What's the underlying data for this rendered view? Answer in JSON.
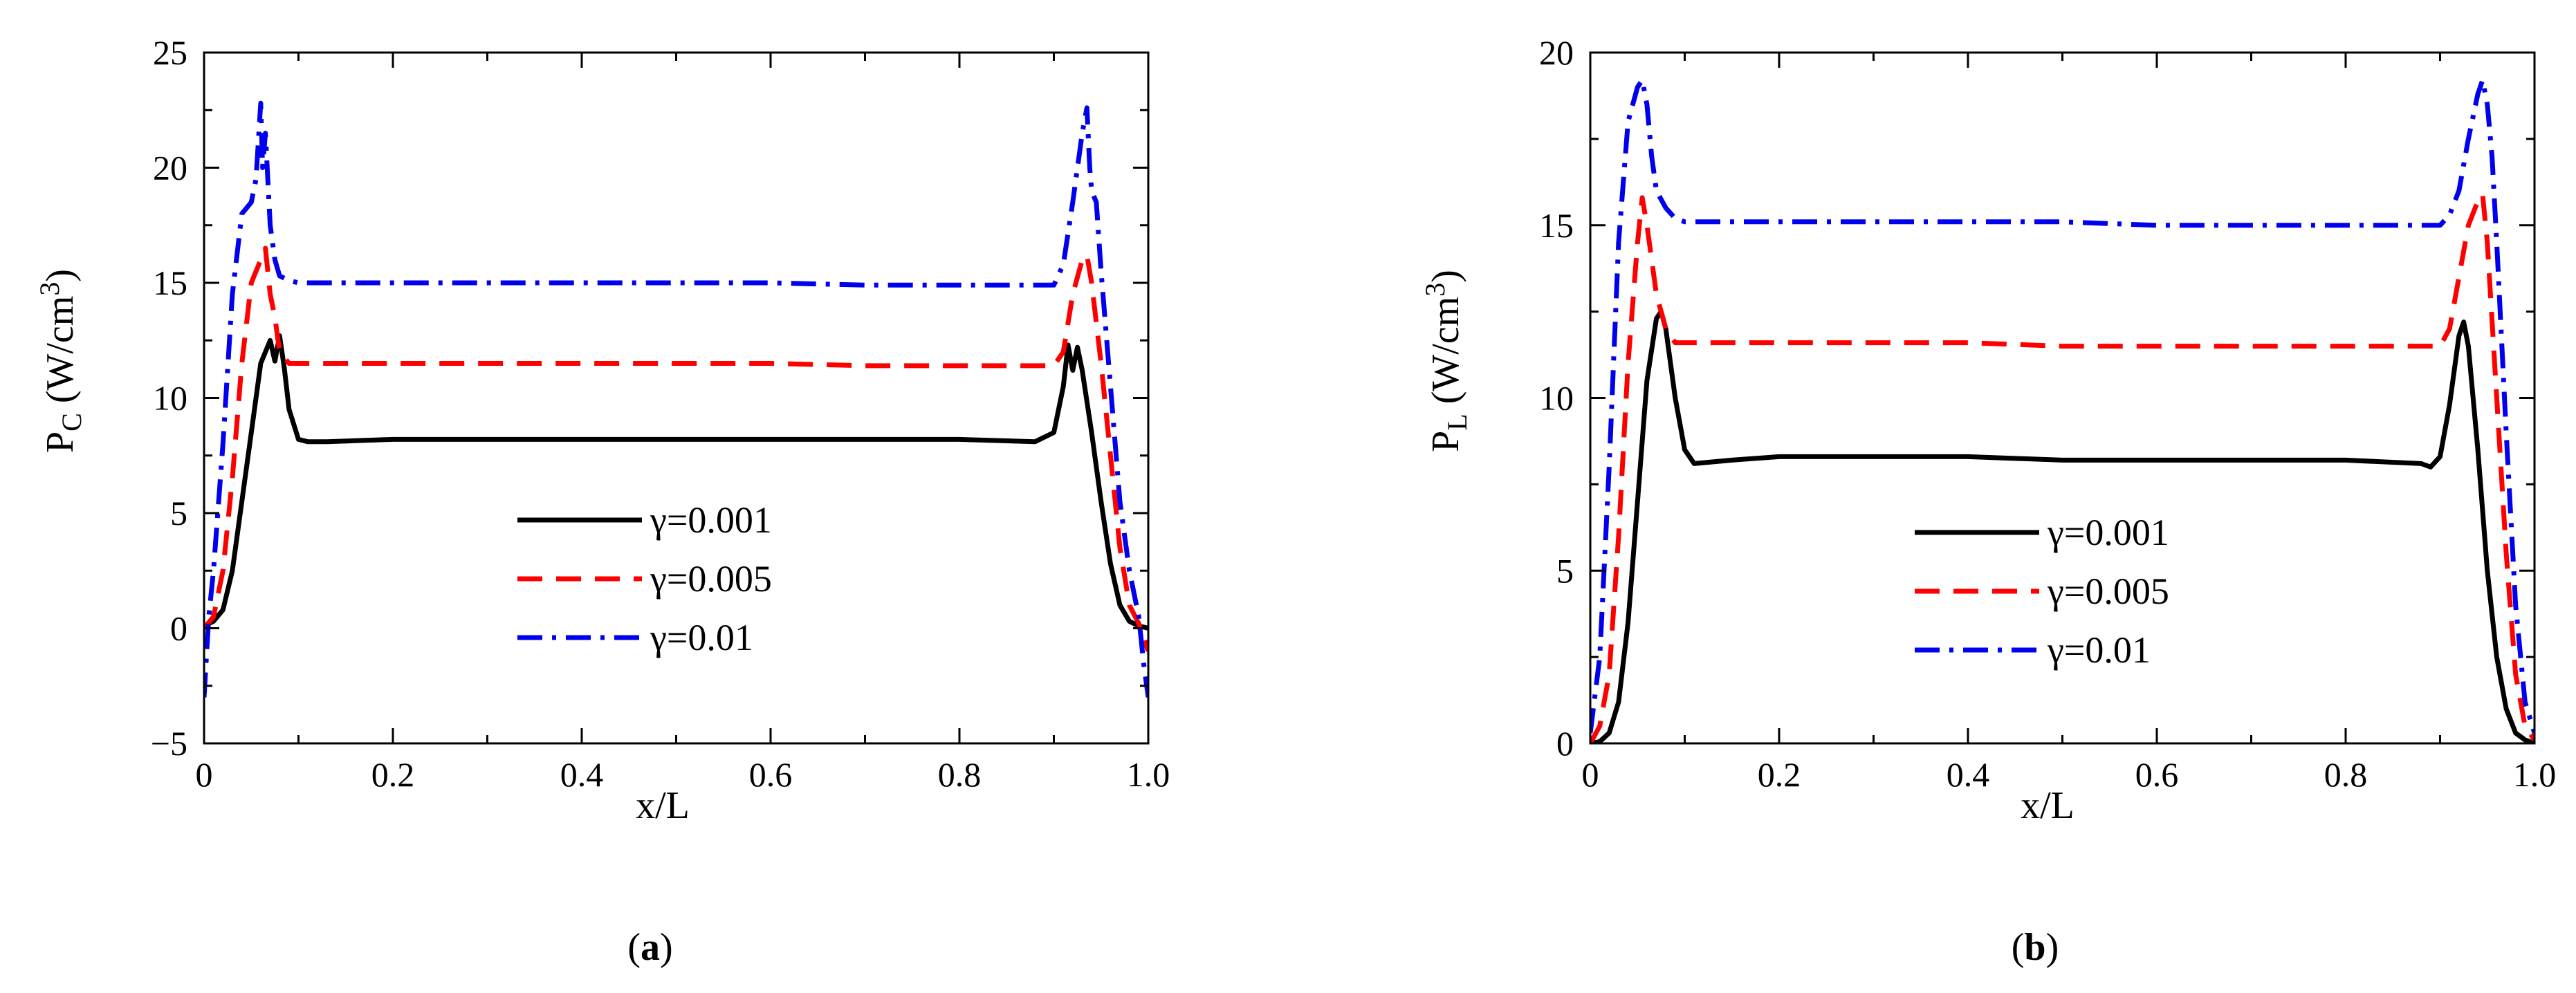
{
  "chart_data": [
    {
      "type": "line",
      "panel": "a",
      "caption": "(a)",
      "caption_letter": "a",
      "xlabel": "x/L",
      "ylabel_main": "P",
      "ylabel_sub": "C",
      "ylabel_unit": " (W/cm",
      "ylabel_sup": "3",
      "ylabel_close": ")",
      "xlim": [
        0,
        1
      ],
      "ylim": [
        -5,
        25
      ],
      "x_ticks": [
        0,
        0.2,
        0.4,
        0.6,
        0.8,
        1.0
      ],
      "x_tick_labels": [
        "0",
        "0.2",
        "0.4",
        "0.6",
        "0.8",
        "1.0"
      ],
      "y_ticks": [
        -5,
        0,
        5,
        10,
        15,
        20,
        25
      ],
      "y_tick_labels": [
        "−5",
        "0",
        "5",
        "10",
        "15",
        "20",
        "25"
      ],
      "legend_position": "center-right",
      "series": [
        {
          "name": "γ=0.001",
          "color": "#000000",
          "style": "solid",
          "x": [
            0,
            0.01,
            0.02,
            0.03,
            0.04,
            0.05,
            0.06,
            0.07,
            0.075,
            0.08,
            0.085,
            0.09,
            0.1,
            0.11,
            0.13,
            0.2,
            0.3,
            0.4,
            0.5,
            0.6,
            0.7,
            0.8,
            0.88,
            0.9,
            0.91,
            0.915,
            0.92,
            0.925,
            0.93,
            0.94,
            0.95,
            0.96,
            0.97,
            0.98,
            0.99,
            1.0
          ],
          "y": [
            0.1,
            0.3,
            0.8,
            2.5,
            5.5,
            8.5,
            11.5,
            12.5,
            11.6,
            12.7,
            11.3,
            9.5,
            8.2,
            8.1,
            8.1,
            8.2,
            8.2,
            8.2,
            8.2,
            8.2,
            8.2,
            8.2,
            8.1,
            8.5,
            10.5,
            12.3,
            11.2,
            12.2,
            11.2,
            8.5,
            5.5,
            2.8,
            1.0,
            0.3,
            0.1,
            0.0
          ]
        },
        {
          "name": "γ=0.005",
          "color": "#ff0000",
          "style": "dashed",
          "x": [
            0,
            0.01,
            0.02,
            0.03,
            0.04,
            0.05,
            0.06,
            0.065,
            0.07,
            0.075,
            0.08,
            0.09,
            0.1,
            0.2,
            0.3,
            0.4,
            0.5,
            0.6,
            0.7,
            0.8,
            0.9,
            0.91,
            0.92,
            0.93,
            0.935,
            0.94,
            0.95,
            0.96,
            0.97,
            0.98,
            0.99,
            1.0
          ],
          "y": [
            0,
            0.5,
            2.5,
            6.5,
            11.5,
            15.0,
            16.0,
            16.5,
            14.5,
            13.5,
            12.0,
            11.5,
            11.5,
            11.5,
            11.5,
            11.5,
            11.5,
            11.5,
            11.4,
            11.4,
            11.4,
            12.0,
            14.5,
            16.0,
            16.2,
            15.0,
            11.5,
            7.5,
            3.5,
            1.0,
            0.2,
            -1.0
          ]
        },
        {
          "name": "γ=0.01",
          "color": "#0000ee",
          "style": "dashdot",
          "x": [
            0,
            0.005,
            0.01,
            0.02,
            0.03,
            0.04,
            0.05,
            0.055,
            0.06,
            0.062,
            0.065,
            0.07,
            0.075,
            0.08,
            0.09,
            0.1,
            0.2,
            0.3,
            0.4,
            0.5,
            0.6,
            0.7,
            0.8,
            0.9,
            0.91,
            0.92,
            0.93,
            0.935,
            0.938,
            0.94,
            0.945,
            0.95,
            0.96,
            0.97,
            0.98,
            0.99,
            0.995,
            1.0
          ],
          "y": [
            -3.0,
            0.5,
            2.5,
            8.0,
            14.5,
            18.0,
            18.5,
            19.5,
            22.8,
            20.0,
            21.5,
            17.5,
            16.0,
            15.3,
            15.1,
            15.0,
            15.0,
            15.0,
            15.0,
            15.0,
            15.0,
            14.9,
            14.9,
            14.9,
            15.8,
            18.5,
            21.5,
            22.6,
            20.0,
            19.0,
            18.5,
            15.5,
            10.5,
            5.5,
            2.5,
            0.5,
            -1.5,
            -3.0
          ]
        }
      ]
    },
    {
      "type": "line",
      "panel": "b",
      "caption": "(b)",
      "caption_letter": "b",
      "xlabel": "x/L",
      "ylabel_main": "P",
      "ylabel_sub": "L",
      "ylabel_unit": " (W/cm",
      "ylabel_sup": "3",
      "ylabel_close": ")",
      "xlim": [
        0,
        1
      ],
      "ylim": [
        0,
        20
      ],
      "x_ticks": [
        0,
        0.2,
        0.4,
        0.6,
        0.8,
        1.0
      ],
      "x_tick_labels": [
        "0",
        "0.2",
        "0.4",
        "0.6",
        "0.8",
        "1.0"
      ],
      "y_ticks": [
        0,
        5,
        10,
        15,
        20
      ],
      "y_tick_labels": [
        "0",
        "5",
        "10",
        "15",
        "20"
      ],
      "legend_position": "center-right",
      "series": [
        {
          "name": "γ=0.001",
          "color": "#000000",
          "style": "solid",
          "x": [
            0,
            0.01,
            0.02,
            0.03,
            0.04,
            0.05,
            0.06,
            0.07,
            0.075,
            0.08,
            0.09,
            0.1,
            0.11,
            0.15,
            0.2,
            0.3,
            0.4,
            0.5,
            0.6,
            0.7,
            0.8,
            0.88,
            0.89,
            0.9,
            0.91,
            0.92,
            0.925,
            0.93,
            0.94,
            0.95,
            0.96,
            0.97,
            0.98,
            0.99,
            1.0
          ],
          "y": [
            0,
            0.05,
            0.3,
            1.2,
            3.5,
            7.0,
            10.5,
            12.3,
            12.5,
            12.0,
            10.0,
            8.5,
            8.1,
            8.2,
            8.3,
            8.3,
            8.3,
            8.2,
            8.2,
            8.2,
            8.2,
            8.1,
            8.0,
            8.3,
            9.8,
            11.8,
            12.2,
            11.5,
            8.5,
            5.0,
            2.5,
            1.0,
            0.3,
            0.1,
            0.0
          ]
        },
        {
          "name": "γ=0.005",
          "color": "#ff0000",
          "style": "dashed",
          "x": [
            0,
            0.01,
            0.02,
            0.03,
            0.04,
            0.05,
            0.055,
            0.06,
            0.07,
            0.08,
            0.09,
            0.1,
            0.2,
            0.3,
            0.4,
            0.5,
            0.6,
            0.7,
            0.8,
            0.9,
            0.91,
            0.92,
            0.93,
            0.94,
            0.945,
            0.95,
            0.96,
            0.97,
            0.98,
            0.99,
            1.0
          ],
          "y": [
            0,
            0.5,
            2.0,
            6.0,
            11.0,
            14.5,
            15.8,
            15.0,
            13.0,
            12.0,
            11.6,
            11.6,
            11.6,
            11.6,
            11.6,
            11.5,
            11.5,
            11.5,
            11.5,
            11.5,
            12.0,
            13.5,
            15.0,
            15.7,
            15.9,
            14.5,
            10.0,
            5.5,
            2.0,
            0.5,
            0.1
          ]
        },
        {
          "name": "γ=0.01",
          "color": "#0000ee",
          "style": "dashdot",
          "x": [
            0,
            0.01,
            0.02,
            0.03,
            0.04,
            0.05,
            0.055,
            0.06,
            0.065,
            0.07,
            0.08,
            0.09,
            0.1,
            0.2,
            0.3,
            0.4,
            0.5,
            0.6,
            0.7,
            0.8,
            0.9,
            0.91,
            0.92,
            0.93,
            0.94,
            0.945,
            0.95,
            0.955,
            0.96,
            0.97,
            0.98,
            0.99,
            1.0
          ],
          "y": [
            0.3,
            2.5,
            8.0,
            14.5,
            18.0,
            19.0,
            19.2,
            18.5,
            17.0,
            16.0,
            15.5,
            15.2,
            15.1,
            15.1,
            15.1,
            15.1,
            15.1,
            15.0,
            15.0,
            15.0,
            15.0,
            15.3,
            16.0,
            17.5,
            18.8,
            19.2,
            18.5,
            17.0,
            14.5,
            9.0,
            4.0,
            1.2,
            0.3
          ]
        }
      ]
    }
  ]
}
